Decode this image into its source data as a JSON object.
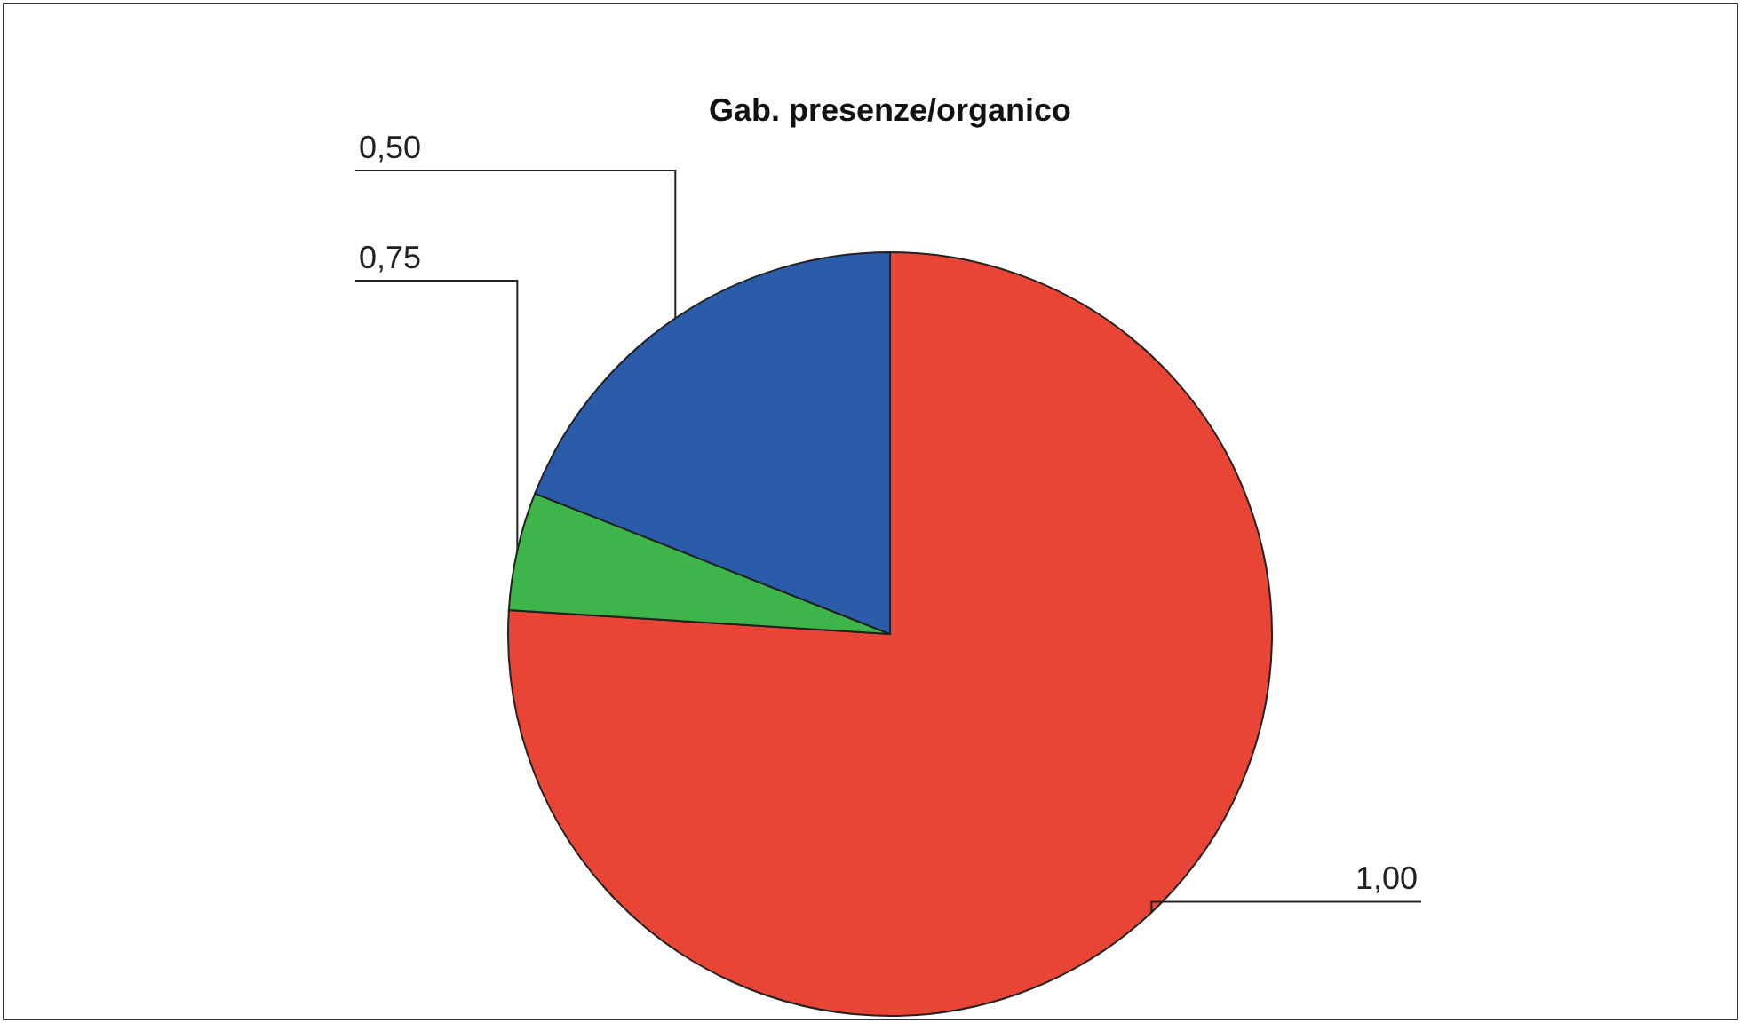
{
  "chart_data": {
    "type": "pie",
    "title": "Gab. presenze/organico",
    "categories": [
      "1,00",
      "0,75",
      "0,50"
    ],
    "values": [
      76,
      5,
      19
    ],
    "colors": [
      "#e84537",
      "#3db54a",
      "#2a5caa"
    ],
    "legend": false
  }
}
